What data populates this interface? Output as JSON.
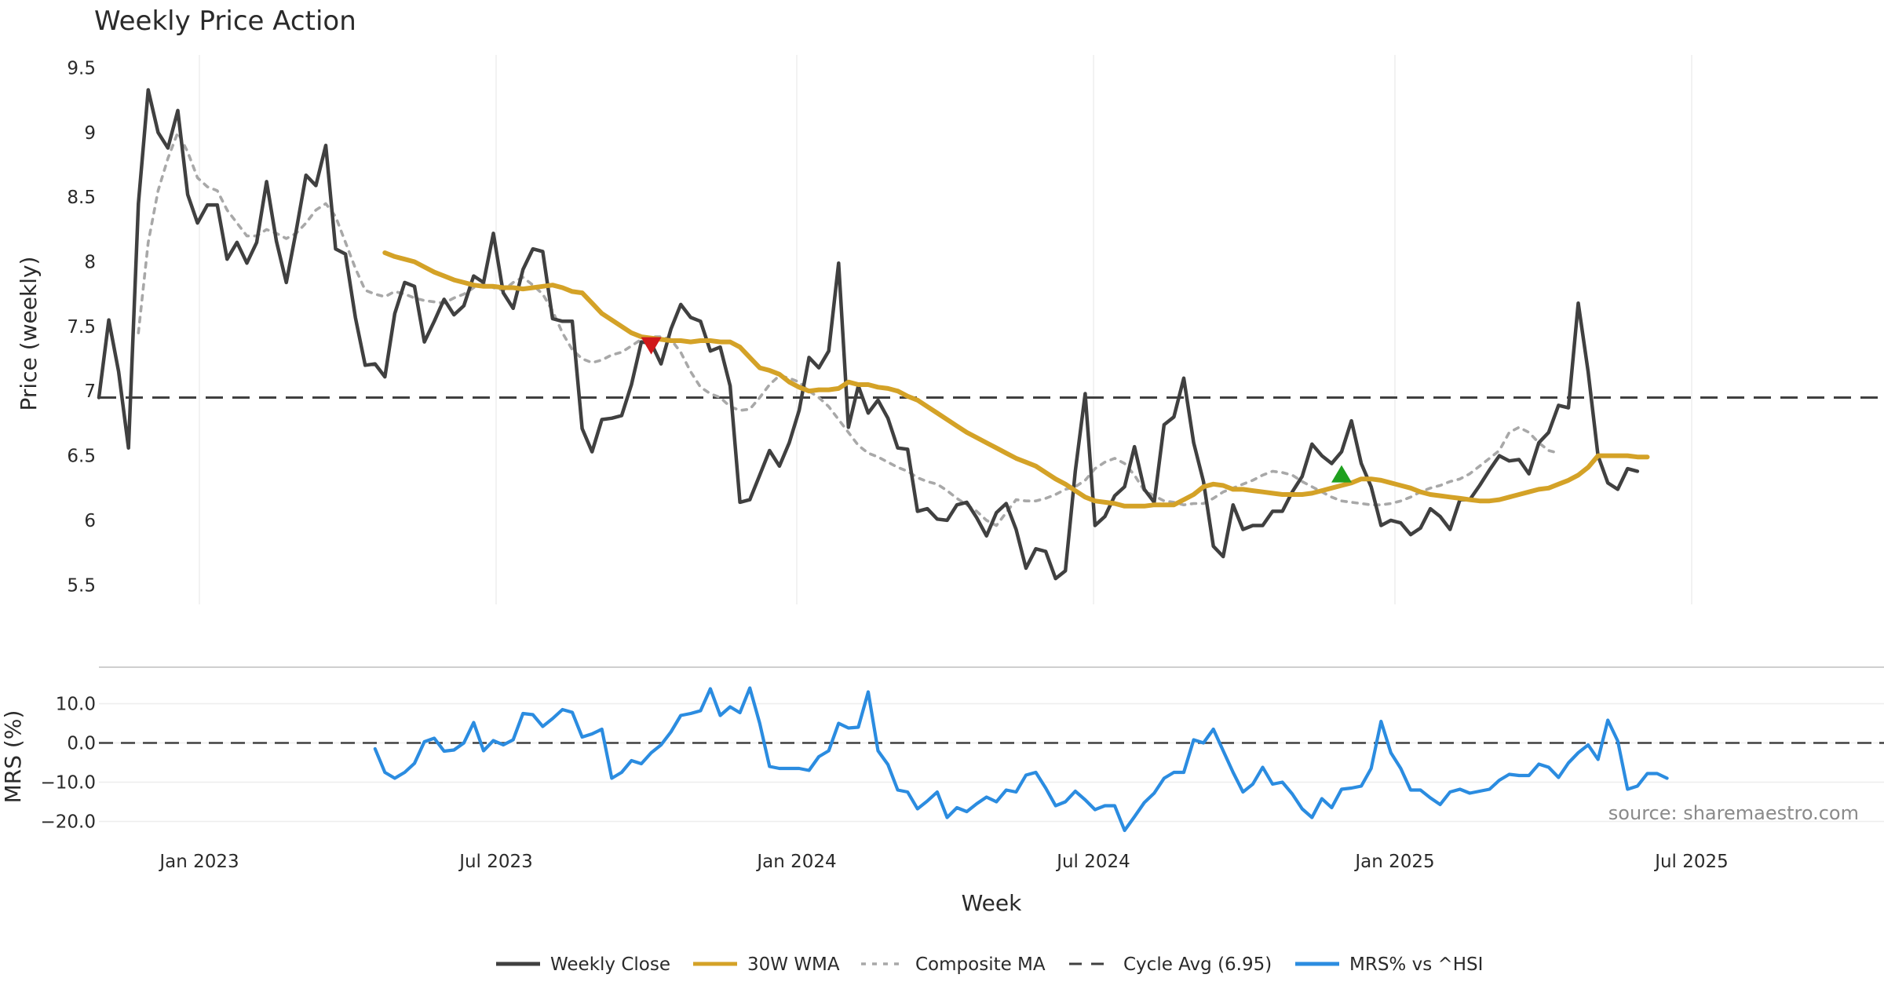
{
  "chart_data": {
    "type": "line",
    "title": "Weekly Price Action",
    "source_note": "source: sharemaestro.com",
    "xlabel": "Week",
    "x_ticks": [
      "Jan 2023",
      "Jul 2023",
      "Jan 2024",
      "Jul 2024",
      "Jan 2025",
      "Jul 2025"
    ],
    "x_range_weeks": [
      0,
      181
    ],
    "price_panel": {
      "ylabel": "Price (weekly)",
      "ylim": [
        5.35,
        9.6
      ],
      "y_ticks": [
        5.5,
        6,
        6.5,
        7,
        7.5,
        8,
        8.5,
        9,
        9.5
      ],
      "y_tick_labels": [
        "5.5",
        "6",
        "6.5",
        "7",
        "7.5",
        "8",
        "8.5",
        "9",
        "9.5"
      ],
      "cycle_avg": 6.95,
      "series": [
        {
          "name": "Weekly Close",
          "color": "#404040",
          "start_week": 0,
          "values": [
            6.95,
            7.55,
            7.15,
            6.56,
            8.45,
            9.33,
            9.0,
            8.88,
            9.17,
            8.52,
            8.3,
            8.44,
            8.44,
            8.02,
            8.15,
            7.99,
            8.15,
            8.62,
            8.16,
            7.84,
            8.24,
            8.67,
            8.59,
            8.9,
            8.1,
            8.06,
            7.57,
            7.2,
            7.21,
            7.11,
            7.6,
            7.84,
            7.81,
            7.38,
            7.54,
            7.71,
            7.59,
            7.66,
            7.89,
            7.84,
            8.22,
            7.76,
            7.64,
            7.94,
            8.1,
            8.08,
            7.56,
            7.54,
            7.54,
            6.71,
            6.53,
            6.78,
            6.79,
            6.81,
            7.05,
            7.38,
            7.37,
            7.21,
            7.48,
            7.67,
            7.57,
            7.54,
            7.31,
            7.34,
            7.04,
            6.14,
            6.16,
            6.35,
            6.54,
            6.42,
            6.6,
            6.85,
            7.26,
            7.18,
            7.31,
            7.99,
            6.72,
            7.04,
            6.83,
            6.93,
            6.79,
            6.56,
            6.55,
            6.07,
            6.09,
            6.01,
            6.0,
            6.12,
            6.14,
            6.02,
            5.88,
            6.06,
            6.13,
            5.93,
            5.63,
            5.78,
            5.76,
            5.55,
            5.61,
            6.38,
            6.98,
            5.96,
            6.03,
            6.19,
            6.26,
            6.57,
            6.24,
            6.14,
            6.74,
            6.8,
            7.1,
            6.6,
            6.3,
            5.8,
            5.72,
            6.12,
            5.93,
            5.96,
            5.96,
            6.07,
            6.07,
            6.22,
            6.34,
            6.59,
            6.5,
            6.44,
            6.53,
            6.77,
            6.44,
            6.26,
            5.96,
            6.0,
            5.98,
            5.89,
            5.94,
            6.09,
            6.03,
            5.93,
            6.16,
            6.16,
            6.27,
            6.39,
            6.5,
            6.46,
            6.47,
            6.36,
            6.6,
            6.68,
            6.89,
            6.87,
            7.68,
            7.15,
            6.5,
            6.29,
            6.24,
            6.4,
            6.38
          ]
        },
        {
          "name": "30W WMA",
          "color": "#d4a227",
          "start_week": 29,
          "values": [
            8.07,
            8.04,
            8.02,
            8.0,
            7.96,
            7.92,
            7.89,
            7.86,
            7.84,
            7.82,
            7.81,
            7.81,
            7.8,
            7.8,
            7.79,
            7.8,
            7.81,
            7.82,
            7.8,
            7.77,
            7.76,
            7.68,
            7.6,
            7.55,
            7.5,
            7.45,
            7.42,
            7.41,
            7.4,
            7.39,
            7.39,
            7.38,
            7.39,
            7.39,
            7.38,
            7.38,
            7.34,
            7.26,
            7.18,
            7.16,
            7.13,
            7.07,
            7.03,
            7.0,
            7.01,
            7.01,
            7.02,
            7.07,
            7.05,
            7.05,
            7.03,
            7.02,
            7.0,
            6.96,
            6.93,
            6.88,
            6.83,
            6.78,
            6.73,
            6.68,
            6.64,
            6.6,
            6.56,
            6.52,
            6.48,
            6.45,
            6.42,
            6.37,
            6.32,
            6.28,
            6.23,
            6.18,
            6.15,
            6.14,
            6.13,
            6.11,
            6.11,
            6.11,
            6.12,
            6.12,
            6.12,
            6.16,
            6.2,
            6.26,
            6.28,
            6.27,
            6.24,
            6.24,
            6.23,
            6.22,
            6.21,
            6.2,
            6.2,
            6.2,
            6.21,
            6.23,
            6.25,
            6.27,
            6.29,
            6.32,
            6.32,
            6.31,
            6.29,
            6.27,
            6.25,
            6.22,
            6.2,
            6.19,
            6.18,
            6.17,
            6.16,
            6.15,
            6.15,
            6.16,
            6.18,
            6.2,
            6.22,
            6.24,
            6.25,
            6.28,
            6.31,
            6.35,
            6.41,
            6.5,
            6.5,
            6.5,
            6.5,
            6.49,
            6.49
          ]
        },
        {
          "name": "Composite MA",
          "color": "#a8a8a8",
          "start_week": 4,
          "values": [
            7.45,
            8.15,
            8.55,
            8.8,
            9.0,
            8.85,
            8.65,
            8.58,
            8.55,
            8.4,
            8.3,
            8.2,
            8.2,
            8.25,
            8.22,
            8.18,
            8.22,
            8.3,
            8.4,
            8.45,
            8.35,
            8.15,
            7.95,
            7.78,
            7.75,
            7.73,
            7.77,
            7.75,
            7.72,
            7.7,
            7.69,
            7.68,
            7.72,
            7.75,
            7.8,
            7.83,
            7.8,
            7.78,
            7.84,
            7.88,
            7.82,
            7.75,
            7.62,
            7.45,
            7.32,
            7.25,
            7.22,
            7.24,
            7.28,
            7.3,
            7.35,
            7.4,
            7.42,
            7.42,
            7.4,
            7.3,
            7.15,
            7.03,
            6.98,
            6.95,
            6.88,
            6.85,
            6.86,
            6.95,
            7.05,
            7.12,
            7.1,
            7.07,
            7.0,
            6.95,
            6.88,
            6.78,
            6.68,
            6.58,
            6.52,
            6.49,
            6.45,
            6.41,
            6.38,
            6.33,
            6.3,
            6.28,
            6.23,
            6.17,
            6.12,
            6.07,
            6.0,
            5.96,
            6.06,
            6.16,
            6.15,
            6.15,
            6.17,
            6.2,
            6.24,
            6.26,
            6.31,
            6.4,
            6.45,
            6.48,
            6.44,
            6.35,
            6.23,
            6.19,
            6.15,
            6.14,
            6.12,
            6.13,
            6.13,
            6.17,
            6.22,
            6.25,
            6.28,
            6.31,
            6.35,
            6.38,
            6.37,
            6.35,
            6.3,
            6.26,
            6.22,
            6.18,
            6.15,
            6.14,
            6.13,
            6.12,
            6.12,
            6.13,
            6.15,
            6.18,
            6.22,
            6.25,
            6.27,
            6.3,
            6.32,
            6.36,
            6.42,
            6.48,
            6.54,
            6.68,
            6.72,
            6.68,
            6.6,
            6.54,
            6.52
          ]
        }
      ],
      "markers": [
        {
          "type": "sell",
          "shape": "down-triangle",
          "color": "#d0181a",
          "week": 56,
          "value": 7.35
        },
        {
          "type": "buy",
          "shape": "up-triangle",
          "color": "#1fa01f",
          "week": 126,
          "value": 6.36
        }
      ]
    },
    "mrs_panel": {
      "ylabel": "MRS (%)",
      "ylim": [
        -23.5,
        16.5
      ],
      "y_ticks": [
        -20,
        -10,
        0,
        10
      ],
      "y_tick_labels": [
        "−20.0",
        "−10.0",
        "0.0",
        "10.0"
      ],
      "zero_line": 0,
      "series": [
        {
          "name": "MRS% vs ^HSI",
          "color": "#2b8ce0",
          "start_week": 28,
          "values": [
            -1.5,
            -7.5,
            -9.0,
            -7.5,
            -5.2,
            0.3,
            1.2,
            -2.1,
            -1.8,
            0.0,
            5.2,
            -2.0,
            0.6,
            -0.5,
            0.8,
            7.5,
            7.2,
            4.2,
            6.2,
            8.5,
            7.8,
            1.5,
            2.3,
            3.5,
            -9.0,
            -7.5,
            -4.5,
            -5.3,
            -2.5,
            -0.5,
            2.8,
            7.0,
            7.5,
            8.2,
            13.8,
            7.0,
            9.2,
            7.7,
            14.0,
            5.0,
            -6.0,
            -6.5,
            -6.5,
            -6.5,
            -7.0,
            -3.5,
            -2.0,
            5.0,
            3.8,
            4.0,
            13.0,
            -2.0,
            -5.5,
            -12.0,
            -12.5,
            -16.8,
            -14.8,
            -12.5,
            -19.0,
            -16.5,
            -17.5,
            -15.5,
            -13.8,
            -15.0,
            -12.0,
            -12.5,
            -8.2,
            -7.5,
            -11.5,
            -16.0,
            -15.0,
            -12.3,
            -14.5,
            -17.0,
            -16.0,
            -16.0,
            -22.3,
            -18.8,
            -15.2,
            -12.8,
            -9.0,
            -7.5,
            -7.5,
            0.8,
            0.0,
            3.5,
            -2.0,
            -7.5,
            -12.5,
            -10.5,
            -6.2,
            -10.5,
            -10.0,
            -13.0,
            -16.8,
            -19.0,
            -14.2,
            -16.5,
            -11.8,
            -11.5,
            -11.0,
            -6.5,
            5.5,
            -2.5,
            -6.5,
            -12.0,
            -12.0,
            -14.0,
            -15.7,
            -12.5,
            -11.8,
            -12.8,
            -12.3,
            -11.8,
            -9.5,
            -8.0,
            -8.3,
            -8.3,
            -5.4,
            -6.2,
            -8.8,
            -5.1,
            -2.5,
            -0.5,
            -4.2,
            5.8,
            0.5,
            -11.8,
            -11.0,
            -7.8,
            -7.8,
            -9.0
          ]
        }
      ]
    },
    "legend": [
      {
        "label": "Weekly Close",
        "style": "solid",
        "color": "#404040"
      },
      {
        "label": "30W WMA",
        "style": "solid",
        "color": "#d4a227"
      },
      {
        "label": "Composite MA",
        "style": "dotted",
        "color": "#a8a8a8"
      },
      {
        "label": "Cycle Avg (6.95)",
        "style": "dashed",
        "color": "#404040"
      },
      {
        "label": "MRS% vs ^HSI",
        "style": "solid",
        "color": "#2b8ce0"
      }
    ]
  }
}
